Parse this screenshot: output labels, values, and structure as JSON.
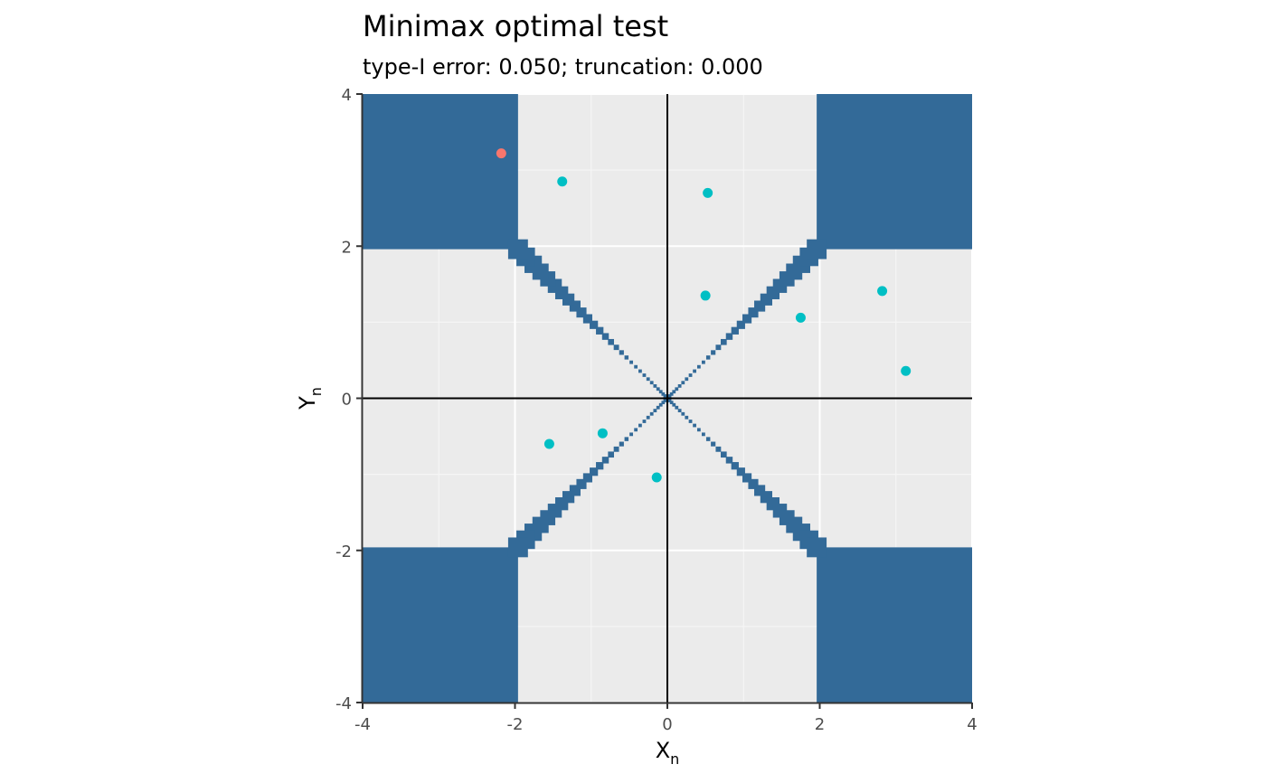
{
  "chart_data": {
    "type": "scatter",
    "title": "Minimax optimal test",
    "subtitle": "type-I error: 0.050; truncation: 0.000",
    "xlabel": {
      "main": "X",
      "sub": "n"
    },
    "ylabel": {
      "main": "Y",
      "sub": "n"
    },
    "xlim": [
      -4,
      4
    ],
    "ylim": [
      -4,
      4
    ],
    "x_ticks": [
      -4,
      -2,
      0,
      2,
      4
    ],
    "y_ticks": [
      -4,
      -2,
      0,
      2,
      4
    ],
    "x_tick_labels": [
      "-4",
      "-2",
      "0",
      "2",
      "4"
    ],
    "y_tick_labels": [
      "-4",
      "-2",
      "0",
      "2",
      "4"
    ],
    "grid": true,
    "reference_lines": {
      "x": 0,
      "y": 0
    },
    "rejection_region": {
      "color": "#336a98",
      "corner_threshold": 1.96,
      "diagonal_steps": 30
    },
    "colors": {
      "panel_background": "#ebebeb",
      "grid_major": "#ffffff",
      "grid_minor": "#f5f5f5",
      "reference_line": "#000000"
    },
    "series": [
      {
        "color": "#f8766d",
        "points": [
          {
            "x": -2.18,
            "y": 3.22
          }
        ]
      },
      {
        "color": "#00bfc4",
        "points": [
          {
            "x": -1.38,
            "y": 2.85
          },
          {
            "x": 0.53,
            "y": 2.7
          },
          {
            "x": 0.5,
            "y": 1.35
          },
          {
            "x": 1.75,
            "y": 1.06
          },
          {
            "x": 2.82,
            "y": 1.41
          },
          {
            "x": 3.13,
            "y": 0.36
          },
          {
            "x": -1.55,
            "y": -0.6
          },
          {
            "x": -0.85,
            "y": -0.46
          },
          {
            "x": -0.14,
            "y": -1.04
          }
        ]
      }
    ]
  }
}
